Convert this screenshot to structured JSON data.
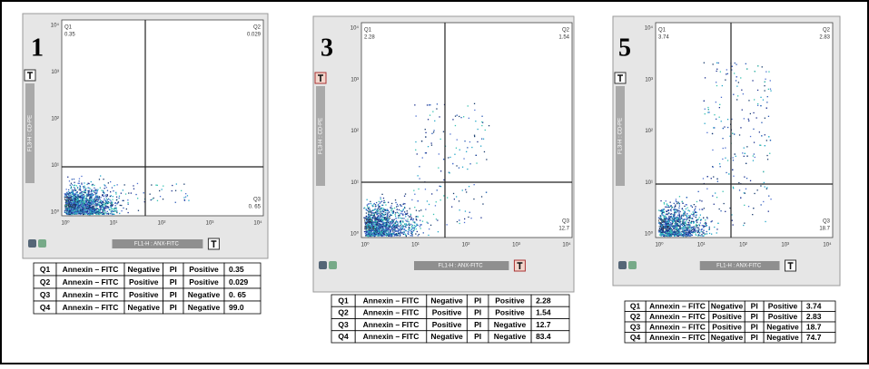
{
  "panels": [
    {
      "number": "1",
      "x_axis_label": "FL1-H : ANX-FITC",
      "y_axis_label": "FL3-H : CD-PE",
      "table": [
        [
          "Q1",
          "Annexin – FITC",
          "Negative",
          "PI",
          "Positive",
          "0.35"
        ],
        [
          "Q2",
          "Annexin – FITC",
          "Positive",
          "PI",
          "Positive",
          "0.029"
        ],
        [
          "Q3",
          "Annexin – FITC",
          "Positive",
          "PI",
          "Negative",
          "0. 65"
        ],
        [
          "Q4",
          "Annexin – FITC",
          "Negative",
          "PI",
          "Negative",
          "99.0"
        ]
      ]
    },
    {
      "number": "3",
      "x_axis_label": "FL1-H : ANX-FITC",
      "y_axis_label": "FL3-H : CD-PE",
      "table": [
        [
          "Q1",
          "Annexin – FITC",
          "Negative",
          "PI",
          "Positive",
          "2.28"
        ],
        [
          "Q2",
          "Annexin – FITC",
          "Positive",
          "PI",
          "Positive",
          "1.54"
        ],
        [
          "Q3",
          "Annexin – FITC",
          "Positive",
          "PI",
          "Negative",
          "12.7"
        ],
        [
          "Q4",
          "Annexin – FITC",
          "Negative",
          "PI",
          "Negative",
          "83.4"
        ]
      ]
    },
    {
      "number": "5",
      "x_axis_label": "FL1-H : ANX-FITC",
      "y_axis_label": "FL3-H : CD-PE",
      "table": [
        [
          "Q1",
          "Annexin – FITC",
          "Negative",
          "PI",
          "Positive",
          "3.74"
        ],
        [
          "Q2",
          "Annexin – FITC",
          "Positive",
          "PI",
          "Positive",
          "2.83"
        ],
        [
          "Q3",
          "Annexin – FITC",
          "Positive",
          "PI",
          "Negative",
          "18.7"
        ],
        [
          "Q4",
          "Annexin – FITC",
          "Negative",
          "PI",
          "Negative",
          "74.7"
        ]
      ]
    }
  ],
  "axis_ticks": [
    "10⁰",
    "10¹",
    "10²",
    "10³",
    "10⁴"
  ]
}
